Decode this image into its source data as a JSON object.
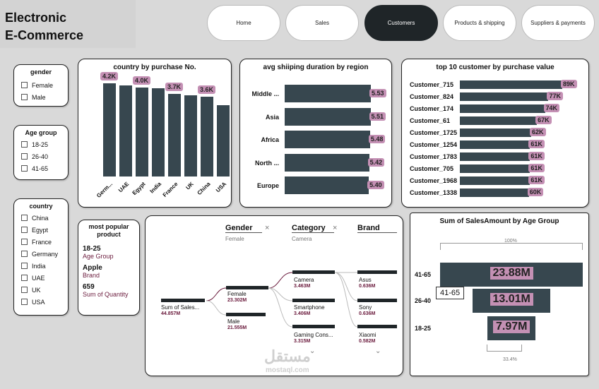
{
  "header": {
    "title_line1": "Electronic",
    "title_line2": "E-Commerce"
  },
  "nav": {
    "items": [
      "Home",
      "Sales",
      "Customers",
      "Products & shipping",
      "Suppliers & payments"
    ],
    "active": "Customers"
  },
  "slicers": {
    "gender": {
      "title": "gender",
      "options": [
        "Female",
        "Male"
      ]
    },
    "age": {
      "title": "Age group",
      "options": [
        "18-25",
        "26-40",
        "41-65"
      ]
    },
    "country": {
      "title": "country",
      "options": [
        "China",
        "Egypt",
        "France",
        "Germany",
        "India",
        "UAE",
        "UK",
        "USA"
      ]
    }
  },
  "popular": {
    "title": "most popular product",
    "age_value": "18-25",
    "age_caption": "Age Group",
    "brand_value": "Apple",
    "brand_caption": "Brand",
    "qty_value": "659",
    "qty_caption": "Sum of Quantity"
  },
  "country_chart": {
    "title": "country by purchase No.",
    "type": "bar",
    "categories": [
      "Germ...",
      "UAE",
      "Egypt",
      "India",
      "France",
      "UK",
      "China",
      "USA"
    ],
    "values": [
      4.2,
      4.1,
      4.0,
      3.95,
      3.7,
      3.65,
      3.6,
      3.2
    ],
    "labels": [
      "4.2K",
      "",
      "4.0K",
      "",
      "3.7K",
      "",
      "3.6K",
      ""
    ],
    "ylim": [
      0,
      4.6
    ]
  },
  "shipping_chart": {
    "title": "avg shiiping duration by region",
    "type": "bar",
    "categories": [
      "Middle ...",
      "Asia",
      "Africa",
      "North ...",
      "Europe"
    ],
    "values": [
      5.53,
      5.51,
      5.48,
      5.42,
      5.4
    ],
    "labels": [
      "5.53",
      "5.51",
      "5.48",
      "5.42",
      "5.40"
    ]
  },
  "customer_chart": {
    "title": "top 10 customer by purchase value",
    "type": "bar",
    "categories": [
      "Customer_715",
      "Customer_824",
      "Customer_174",
      "Customer_61",
      "Customer_1725",
      "Customer_1254",
      "Customer_1783",
      "Customer_705",
      "Customer_1968",
      "Customer_1338"
    ],
    "values": [
      89,
      77,
      74,
      67,
      62,
      61,
      61,
      61,
      61,
      60
    ],
    "labels": [
      "89K",
      "77K",
      "74K",
      "67K",
      "62K",
      "61K",
      "61K",
      "61K",
      "61K",
      "60K"
    ]
  },
  "tree": {
    "headers": [
      {
        "title": "Gender",
        "sub": "Female"
      },
      {
        "title": "Category",
        "sub": "Camera"
      },
      {
        "title": "Brand",
        "sub": ""
      }
    ],
    "root": {
      "label": "Sum of Sales...",
      "value": "44.857M"
    },
    "gender": [
      {
        "label": "Female",
        "value": "23.302M"
      },
      {
        "label": "Male",
        "value": "21.555M"
      }
    ],
    "category": [
      {
        "label": "Camera",
        "value": "3.463M"
      },
      {
        "label": "Smartphone",
        "value": "3.406M"
      },
      {
        "label": "Gaming Cons...",
        "value": "3.315M"
      }
    ],
    "brand": [
      {
        "label": "Asus",
        "value": "0.636M"
      },
      {
        "label": "Sony",
        "value": "0.636M"
      },
      {
        "label": "Xiaomi",
        "value": "0.582M"
      }
    ]
  },
  "funnel": {
    "title": "Sum of SalesAmount by Age Group",
    "top_pct": "100%",
    "bottom_pct": "33.4%",
    "tooltip": "41-65",
    "chart_data": {
      "type": "bar",
      "categories": [
        "41-65",
        "26-40",
        "18-25"
      ],
      "values": [
        23.88,
        13.01,
        7.97
      ],
      "labels": [
        "23.88M",
        "13.01M",
        "7.97M"
      ]
    }
  },
  "watermark": {
    "arabic": "مستقل",
    "latin": "mostaql.com"
  },
  "colors": {
    "bar": "#37474f",
    "label_bg": "#c490b4",
    "dark": "#1f2528",
    "accent": "#6a1a3c"
  }
}
